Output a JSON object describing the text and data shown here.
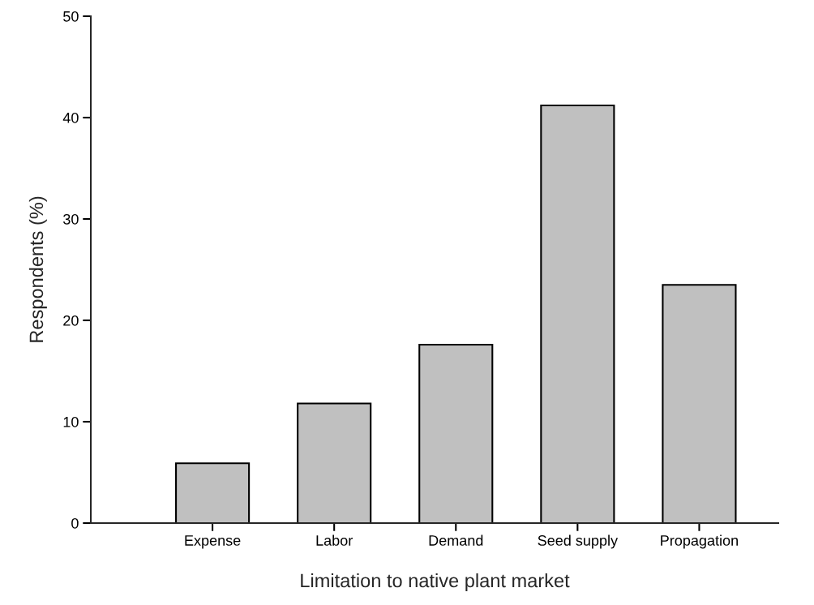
{
  "chart_data": {
    "type": "bar",
    "xlabel": "Limitation to native plant market",
    "ylabel": "Respondents (%)",
    "categories": [
      "Expense",
      "Labor",
      "Demand",
      "Seed supply",
      "Propagation"
    ],
    "values": [
      5.9,
      11.8,
      17.6,
      41.2,
      23.5
    ],
    "color": "#c0c0c0",
    "ylim": [
      0,
      50
    ],
    "yticks": [
      0,
      10,
      20,
      30,
      40,
      50
    ],
    "grid": false
  }
}
